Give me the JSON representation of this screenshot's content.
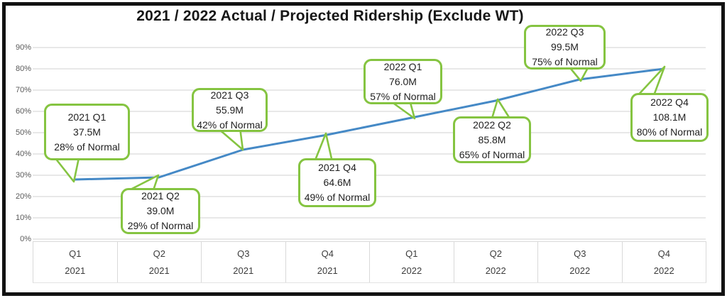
{
  "chart_data": {
    "type": "line",
    "title": "2021 / 2022 Actual / Projected Ridership (Exclude WT)",
    "categories": [
      "Q1 2021",
      "Q2 2021",
      "Q3 2021",
      "Q4 2021",
      "Q1 2022",
      "Q2 2022",
      "Q3 2022",
      "Q4 2022"
    ],
    "values_pct_of_normal": [
      28,
      29,
      42,
      49,
      57,
      65,
      75,
      80
    ],
    "riders_millions": [
      37.5,
      39.0,
      55.9,
      64.6,
      76.0,
      85.8,
      99.5,
      108.1
    ],
    "ylabel": "",
    "xlabel": "",
    "ylim": [
      0,
      90
    ],
    "grid": true,
    "legend": false,
    "line_color": "#4589c6",
    "callout_border_color": "#85c441",
    "y_ticks": [
      "90%",
      "80%",
      "70%",
      "60%",
      "50%",
      "40%",
      "30%",
      "20%",
      "10%",
      "0%"
    ],
    "x_labels": [
      {
        "quarter": "Q1",
        "year": "2021"
      },
      {
        "quarter": "Q2",
        "year": "2021"
      },
      {
        "quarter": "Q3",
        "year": "2021"
      },
      {
        "quarter": "Q4",
        "year": "2021"
      },
      {
        "quarter": "Q1",
        "year": "2022"
      },
      {
        "quarter": "Q2",
        "year": "2022"
      },
      {
        "quarter": "Q3",
        "year": "2022"
      },
      {
        "quarter": "Q4",
        "year": "2022"
      }
    ],
    "callouts": [
      {
        "period": "2021 Q1",
        "riders": "37.5M",
        "pct": "28% of Normal"
      },
      {
        "period": "2021 Q2",
        "riders": "39.0M",
        "pct": "29% of Normal"
      },
      {
        "period": "2021 Q3",
        "riders": "55.9M",
        "pct": "42% of Normal"
      },
      {
        "period": "2021 Q4",
        "riders": "64.6M",
        "pct": "49% of Normal"
      },
      {
        "period": "2022 Q1",
        "riders": "76.0M",
        "pct": "57% of Normal"
      },
      {
        "period": "2022 Q2",
        "riders": "85.8M",
        "pct": "65% of Normal"
      },
      {
        "period": "2022 Q3",
        "riders": "99.5M",
        "pct": "75% of Normal"
      },
      {
        "period": "2022 Q4",
        "riders": "108.1M",
        "pct": "80% of Normal"
      }
    ]
  }
}
